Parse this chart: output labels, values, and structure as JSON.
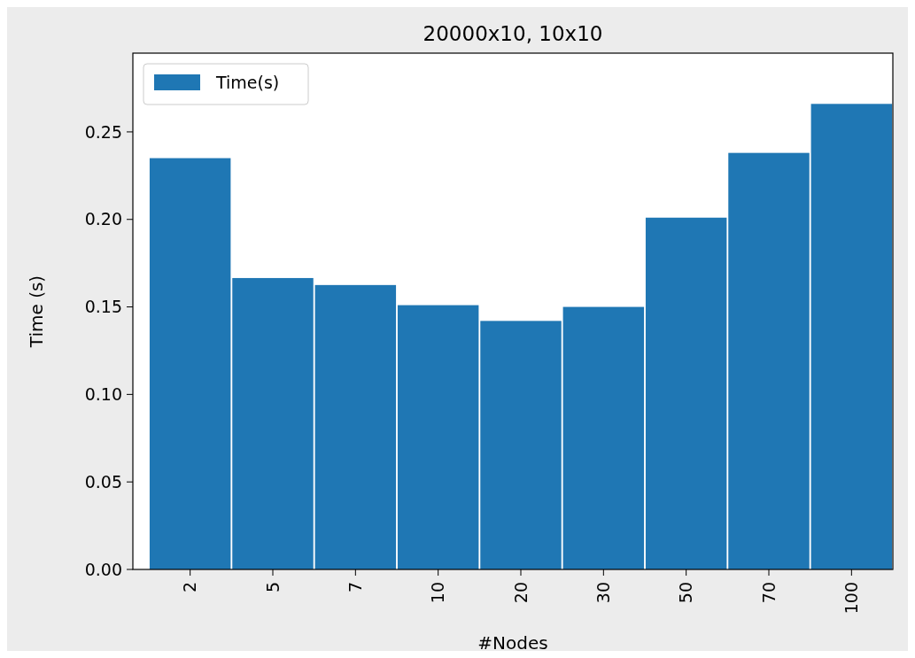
{
  "chart_data": {
    "type": "bar",
    "title": "20000x10, 10x10",
    "xlabel": "#Nodes",
    "ylabel": "Time (s)",
    "categories": [
      "2",
      "5",
      "7",
      "10",
      "20",
      "30",
      "50",
      "70",
      "100"
    ],
    "series": [
      {
        "name": "Time(s)",
        "color": "#1f77b4",
        "values": [
          0.235,
          0.1665,
          0.1625,
          0.151,
          0.142,
          0.15,
          0.201,
          0.238,
          0.266
        ]
      }
    ],
    "ylim": [
      0,
      0.295
    ],
    "yticks": [
      {
        "value": 0,
        "label": "0.00"
      },
      {
        "value": 0.05,
        "label": "0.05"
      },
      {
        "value": 0.1,
        "label": "0.10"
      },
      {
        "value": 0.15,
        "label": "0.15"
      },
      {
        "value": 0.2,
        "label": "0.20"
      },
      {
        "value": 0.25,
        "label": "0.25"
      }
    ],
    "legend": "top left",
    "grid": false
  }
}
